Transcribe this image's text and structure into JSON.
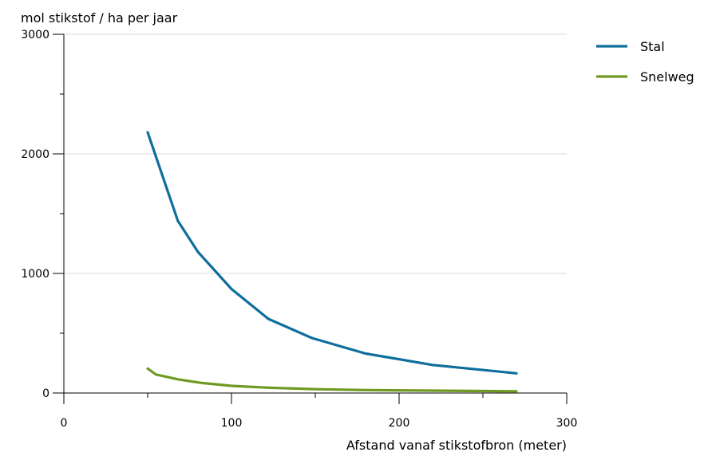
{
  "chart_data": {
    "type": "line",
    "title": "",
    "xlabel": "Afstand vanaf stikstofbron (meter)",
    "ylabel": "mol stikstof / ha per jaar",
    "xlim": [
      0,
      300
    ],
    "ylim": [
      0,
      3000
    ],
    "xticks": [
      0,
      100,
      200,
      300
    ],
    "yticks": [
      0,
      1000,
      2000,
      3000
    ],
    "x_tick_labels": [
      "0",
      "100",
      "200",
      "300"
    ],
    "y_tick_labels": [
      "0",
      "1000",
      "2000",
      "3000"
    ],
    "grid": "horizontal",
    "legend": "top-right",
    "series": [
      {
        "name": "Stal",
        "color": "#0e6e9c",
        "x": [
          50,
          68,
          80,
          100,
          122,
          148,
          180,
          220,
          270
        ],
        "y": [
          2180,
          1440,
          1180,
          870,
          620,
          460,
          330,
          235,
          165
        ]
      },
      {
        "name": "Snelweg",
        "color": "#6f9a22",
        "x": [
          50,
          55,
          68,
          82,
          100,
          122,
          150,
          180,
          220,
          270
        ],
        "y": [
          205,
          155,
          115,
          85,
          60,
          45,
          32,
          25,
          20,
          15
        ]
      }
    ]
  }
}
